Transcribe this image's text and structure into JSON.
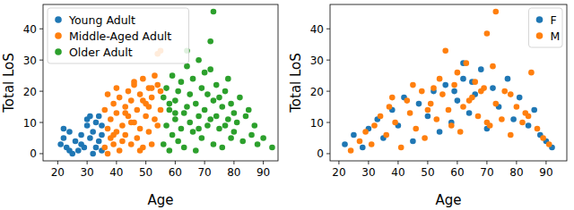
{
  "chart_data": [
    {
      "type": "scatter",
      "x_label": "Age",
      "y_label": "Total LoS",
      "xlim": [
        15,
        95
      ],
      "ylim": [
        -2.3,
        47.8
      ],
      "xticks": [
        20,
        30,
        40,
        50,
        60,
        70,
        80,
        90
      ],
      "yticks": [
        0,
        10,
        20,
        30,
        40
      ],
      "legend": "upper-left",
      "series": [
        {
          "name": "Young Adult",
          "color": "#1f77b4",
          "x": [
            21,
            22,
            22,
            23,
            24,
            24,
            25,
            26,
            27,
            28,
            28,
            29,
            30,
            30,
            31,
            31,
            32,
            32,
            33,
            33,
            34,
            34,
            35,
            35,
            35
          ],
          "values": [
            3,
            8,
            5,
            2,
            7,
            1,
            0,
            4,
            1,
            6,
            3,
            2,
            9,
            11,
            5,
            12,
            0,
            7,
            2,
            10,
            4,
            12,
            6,
            1,
            9
          ]
        },
        {
          "name": "Middle-Aged Adult",
          "color": "#ff7f0e",
          "x": [
            36,
            36,
            37,
            37,
            38,
            38,
            39,
            39,
            40,
            40,
            41,
            41,
            42,
            42,
            43,
            43,
            44,
            44,
            45,
            45,
            46,
            46,
            47,
            47,
            48,
            48,
            49,
            49,
            50,
            50,
            51,
            51,
            52,
            52,
            53,
            53,
            54,
            54,
            55,
            55,
            37,
            40,
            43,
            46,
            49,
            52,
            55,
            39,
            45,
            51,
            54,
            48
          ],
          "values": [
            2,
            14,
            8,
            0,
            11,
            5,
            16,
            3,
            7,
            13,
            1,
            18,
            9,
            4,
            15,
            6,
            12,
            20,
            3,
            17,
            10,
            22,
            5,
            14,
            8,
            19,
            24,
            2,
            12,
            16,
            7,
            21,
            3,
            18,
            11,
            25,
            32,
            9,
            33,
            14,
            19,
            21,
            13,
            23,
            17,
            21,
            20,
            6,
            10,
            15,
            22,
            1
          ]
        },
        {
          "name": "Older Adult",
          "color": "#2ca02c",
          "x": [
            56,
            56,
            57,
            57,
            58,
            58,
            59,
            59,
            60,
            60,
            61,
            61,
            62,
            62,
            63,
            63,
            64,
            64,
            65,
            65,
            66,
            66,
            67,
            67,
            68,
            68,
            69,
            69,
            70,
            70,
            71,
            71,
            72,
            72,
            73,
            73,
            74,
            74,
            75,
            75,
            76,
            76,
            77,
            77,
            78,
            78,
            79,
            79,
            80,
            80,
            81,
            82,
            83,
            84,
            85,
            86,
            87,
            88,
            90,
            93,
            64,
            72,
            73,
            68,
            60,
            58
          ],
          "values": [
            3,
            18,
            9,
            21,
            1,
            14,
            25,
            6,
            11,
            17,
            20,
            4,
            8,
            23,
            13,
            2,
            33,
            28,
            10,
            19,
            7,
            24,
            16,
            1,
            30,
            12,
            5,
            21,
            14,
            26,
            9,
            19,
            36,
            27,
            45.5,
            3,
            22,
            12,
            8,
            18,
            15,
            2,
            20,
            9,
            11,
            24,
            5,
            16,
            13,
            7,
            10,
            18,
            4,
            12,
            14,
            6,
            9,
            3,
            5,
            2,
            15,
            11,
            17,
            8,
            13,
            16
          ]
        }
      ]
    },
    {
      "type": "scatter",
      "x_label": "Age",
      "y_label": "Total LoS",
      "xlim": [
        17,
        97
      ],
      "ylim": [
        -2.3,
        47.8
      ],
      "xticks": [
        20,
        30,
        40,
        50,
        60,
        70,
        80,
        90
      ],
      "yticks": [
        0,
        10,
        20,
        30,
        40
      ],
      "legend": "upper-right",
      "series": [
        {
          "name": "F",
          "color": "#1f77b4",
          "x": [
            22,
            25,
            28,
            30,
            33,
            35,
            38,
            40,
            42,
            45,
            47,
            50,
            52,
            54,
            56,
            58,
            60,
            62,
            62,
            64,
            66,
            68,
            70,
            72,
            74,
            77,
            79,
            81,
            84,
            86,
            88,
            90,
            92,
            65,
            59
          ],
          "values": [
            3,
            6,
            2,
            8,
            11,
            5,
            14,
            9,
            18,
            4,
            16,
            12,
            20,
            7,
            22,
            10,
            17,
            29,
            24,
            13,
            19,
            27,
            8,
            21,
            15,
            24,
            11,
            18,
            9,
            14,
            6,
            4,
            2,
            23,
            20
          ]
        },
        {
          "name": "M",
          "color": "#ff7f0e",
          "x": [
            24,
            27,
            29,
            31,
            32,
            34,
            36,
            37,
            39,
            41,
            43,
            44,
            46,
            48,
            49,
            51,
            53,
            55,
            56,
            57,
            59,
            61,
            63,
            65,
            67,
            69,
            70,
            71,
            73,
            73,
            75,
            76,
            78,
            80,
            82,
            83,
            85,
            87,
            89,
            91,
            38,
            45,
            50,
            54,
            58,
            60,
            64,
            68,
            72,
            78,
            84,
            52,
            62,
            66,
            70
          ],
          "values": [
            1,
            4,
            7,
            3,
            9,
            12,
            6,
            15,
            10,
            2,
            17,
            13,
            8,
            20,
            5,
            16,
            11,
            19,
            33,
            14,
            22,
            7,
            29,
            18,
            12,
            21,
            38.5,
            9,
            45.5,
            16,
            11,
            20,
            6,
            15,
            10,
            13,
            26,
            8,
            5,
            3,
            18,
            22,
            14,
            24,
            9,
            26,
            17,
            20,
            28,
            19,
            12,
            21,
            15,
            23,
            10
          ]
        }
      ]
    }
  ]
}
